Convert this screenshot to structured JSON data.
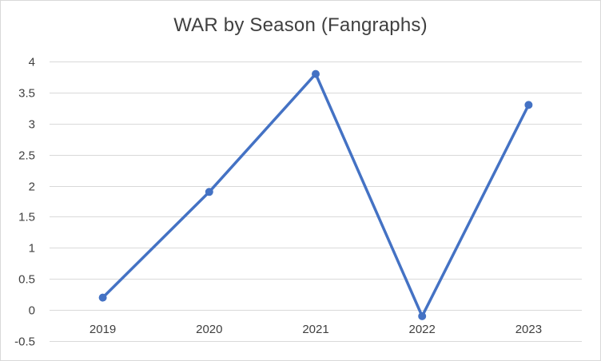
{
  "chart_data": {
    "type": "line",
    "title": "WAR by Season (Fangraphs)",
    "xlabel": "",
    "ylabel": "",
    "categories": [
      "2019",
      "2020",
      "2021",
      "2022",
      "2023"
    ],
    "series": [
      {
        "values": [
          0.2,
          1.9,
          3.8,
          -0.1,
          3.3
        ],
        "color": "#4472c4"
      }
    ],
    "ylim": [
      -0.5,
      4
    ],
    "yticks": [
      "-0.5",
      "0",
      "0.5",
      "1",
      "1.5",
      "2",
      "2.5",
      "3",
      "3.5",
      "4"
    ],
    "ytick_values": [
      -0.5,
      0,
      0.5,
      1,
      1.5,
      2,
      2.5,
      3,
      3.5,
      4
    ],
    "grid": true,
    "legend": "none",
    "gridline_color": "#d9d9d9",
    "text_color": "#404040"
  }
}
